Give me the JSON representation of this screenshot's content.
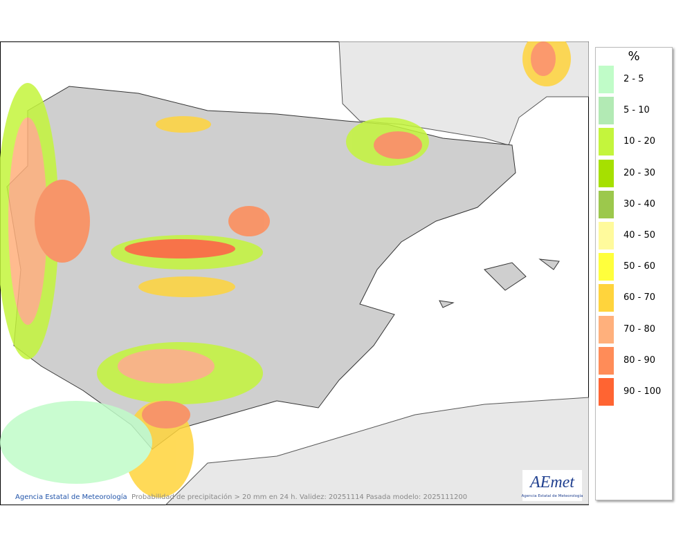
{
  "map": {
    "credit": "Agencia Estatal de Meteorología",
    "caption": "Probabilidad de precipitación > 20 mm en 24 h. Validez: 20251114 Pasada modelo: 2025111200",
    "logo": {
      "name": "AEmet",
      "subtitle": "Agencia Estatal de Meteorología"
    }
  },
  "legend": {
    "title": "%",
    "items": [
      {
        "label": "2 - 5",
        "color": "#c0fcc8"
      },
      {
        "label": "5 - 10",
        "color": "#b2eab4"
      },
      {
        "label": "10 - 20",
        "color": "#c4f53c"
      },
      {
        "label": "20 - 30",
        "color": "#a6e000"
      },
      {
        "label": "30 - 40",
        "color": "#9cc84c"
      },
      {
        "label": "40 - 50",
        "color": "#fffa9c"
      },
      {
        "label": "50 - 60",
        "color": "#ffff3c"
      },
      {
        "label": "60 - 70",
        "color": "#ffd43c"
      },
      {
        "label": "70 - 80",
        "color": "#ffb07c"
      },
      {
        "label": "80 - 90",
        "color": "#ff8c58"
      },
      {
        "label": "90 - 100",
        "color": "#ff6432"
      }
    ]
  }
}
